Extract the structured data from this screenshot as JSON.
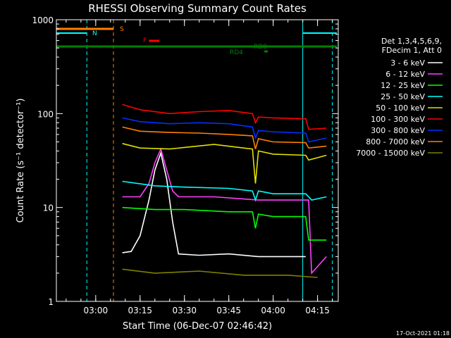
{
  "chart_data": {
    "type": "line",
    "title": "RHESSI Observing Summary Count Rates",
    "xlabel": "Start Time (06-Dec-07 02:46:42)",
    "ylabel": "Count Rate (s⁻¹ detector⁻¹)",
    "y_scale": "log",
    "ylim": [
      1,
      1000
    ],
    "xlim": [
      "02:46:42",
      "04:22:00"
    ],
    "x_ticks": [
      "03:00",
      "03:15",
      "03:30",
      "03:45",
      "04:00",
      "04:15"
    ],
    "y_ticks": [
      "1",
      "10",
      "100",
      "1000"
    ],
    "legend_header": [
      "Det 1,3,4,5,6,9,",
      "FDecim 1, Att 0"
    ],
    "legend_position": "right",
    "footer_date": "17-Oct-2021 01:18",
    "flag_labels": {
      "S": "S",
      "N": "N",
      "F": "F",
      "RD0": "RD0",
      "RD4": "RD4"
    },
    "series": [
      {
        "name": "3 - 6 keV",
        "color": "#ffffff",
        "points": [
          [
            "03:09",
            3.3
          ],
          [
            "03:12",
            3.4
          ],
          [
            "03:15",
            5
          ],
          [
            "03:18",
            12
          ],
          [
            "03:20",
            25
          ],
          [
            "03:22",
            38
          ],
          [
            "03:24",
            20
          ],
          [
            "03:26",
            7
          ],
          [
            "03:28",
            3.2
          ],
          [
            "03:35",
            3.1
          ],
          [
            "03:45",
            3.2
          ],
          [
            "03:55",
            3.0
          ],
          [
            "04:05",
            3.0
          ],
          [
            "04:11",
            3.0
          ]
        ]
      },
      {
        "name": "6 - 12 keV",
        "color": "#ff40ff",
        "points": [
          [
            "03:09",
            13
          ],
          [
            "03:15",
            13
          ],
          [
            "03:18",
            18
          ],
          [
            "03:20",
            30
          ],
          [
            "03:22",
            42
          ],
          [
            "03:24",
            25
          ],
          [
            "03:26",
            15
          ],
          [
            "03:28",
            13
          ],
          [
            "03:40",
            13
          ],
          [
            "03:55",
            12
          ],
          [
            "04:05",
            12
          ],
          [
            "04:12",
            12
          ],
          [
            "04:13",
            2
          ],
          [
            "04:18",
            3
          ]
        ]
      },
      {
        "name": "12 - 25 keV",
        "color": "#00ff00",
        "points": [
          [
            "03:09",
            10
          ],
          [
            "03:20",
            9.5
          ],
          [
            "03:30",
            9.5
          ],
          [
            "03:45",
            9
          ],
          [
            "03:53",
            9
          ],
          [
            "03:54",
            6
          ],
          [
            "03:55",
            8.5
          ],
          [
            "04:00",
            8
          ],
          [
            "04:11",
            8
          ],
          [
            "04:12",
            4.5
          ],
          [
            "04:18",
            4.5
          ]
        ]
      },
      {
        "name": "25 - 50 keV",
        "color": "#00ffff",
        "points": [
          [
            "03:09",
            19
          ],
          [
            "03:20",
            17
          ],
          [
            "03:30",
            16.5
          ],
          [
            "03:45",
            16
          ],
          [
            "03:53",
            15
          ],
          [
            "03:54",
            12
          ],
          [
            "03:55",
            15
          ],
          [
            "04:00",
            14
          ],
          [
            "04:11",
            14
          ],
          [
            "04:13",
            12
          ],
          [
            "04:18",
            13
          ]
        ]
      },
      {
        "name": "50 - 100 keV",
        "color": "#e0e000",
        "points": [
          [
            "03:09",
            48
          ],
          [
            "03:15",
            43
          ],
          [
            "03:25",
            42
          ],
          [
            "03:40",
            47
          ],
          [
            "03:50",
            43
          ],
          [
            "03:53",
            42
          ],
          [
            "03:54",
            18
          ],
          [
            "03:55",
            40
          ],
          [
            "04:00",
            37
          ],
          [
            "04:11",
            36
          ],
          [
            "04:12",
            32
          ],
          [
            "04:18",
            36
          ]
        ]
      },
      {
        "name": "100 - 300 keV",
        "color": "#ff0000",
        "points": [
          [
            "03:09",
            125
          ],
          [
            "03:15",
            110
          ],
          [
            "03:25",
            100
          ],
          [
            "03:35",
            105
          ],
          [
            "03:45",
            108
          ],
          [
            "03:53",
            100
          ],
          [
            "03:54",
            80
          ],
          [
            "03:55",
            92
          ],
          [
            "04:00",
            90
          ],
          [
            "04:11",
            88
          ],
          [
            "04:12",
            68
          ],
          [
            "04:18",
            70
          ]
        ]
      },
      {
        "name": "300 - 800 keV",
        "color": "#0030ff",
        "points": [
          [
            "03:09",
            90
          ],
          [
            "03:15",
            82
          ],
          [
            "03:25",
            78
          ],
          [
            "03:35",
            80
          ],
          [
            "03:45",
            78
          ],
          [
            "03:53",
            72
          ],
          [
            "03:54",
            55
          ],
          [
            "03:55",
            66
          ],
          [
            "04:00",
            64
          ],
          [
            "04:11",
            62
          ],
          [
            "04:12",
            50
          ],
          [
            "04:18",
            55
          ]
        ]
      },
      {
        "name": "800 - 7000 keV",
        "color": "#ff8000",
        "points": [
          [
            "03:09",
            72
          ],
          [
            "03:15",
            65
          ],
          [
            "03:25",
            63
          ],
          [
            "03:35",
            62
          ],
          [
            "03:45",
            60
          ],
          [
            "03:53",
            58
          ],
          [
            "03:54",
            42
          ],
          [
            "03:55",
            54
          ],
          [
            "04:00",
            50
          ],
          [
            "04:11",
            49
          ],
          [
            "04:12",
            43
          ],
          [
            "04:18",
            45
          ]
        ]
      },
      {
        "name": "7000 - 15000 keV",
        "color": "#808000",
        "points": [
          [
            "03:09",
            2.2
          ],
          [
            "03:20",
            2.0
          ],
          [
            "03:35",
            2.1
          ],
          [
            "03:50",
            1.9
          ],
          [
            "04:05",
            1.9
          ],
          [
            "04:15",
            1.8
          ]
        ]
      }
    ],
    "vertical_markers": [
      {
        "time": "02:46:42",
        "color": "#00ffff",
        "style": "solid"
      },
      {
        "time": "02:57:00",
        "color": "#00ffff",
        "style": "dashed"
      },
      {
        "time": "03:06:00",
        "color": "#ff8000",
        "style": "dashed"
      },
      {
        "time": "04:10:00",
        "color": "#00ffff",
        "style": "solid"
      },
      {
        "time": "04:20:00",
        "color": "#00ffff",
        "style": "dashed"
      }
    ]
  }
}
